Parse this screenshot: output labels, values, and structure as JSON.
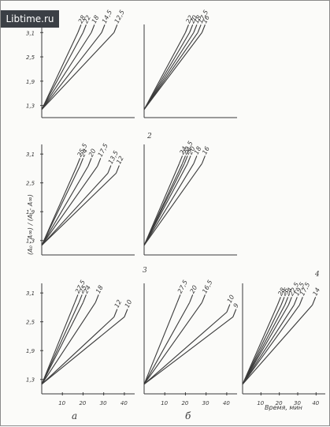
{
  "watermark": "Libtime.ru",
  "y_axis_label": "(A₀ - A∞) / (Aₜ - A∞)",
  "x_axis_label": "Время, мин",
  "column_labels": [
    "а",
    "б"
  ],
  "y_ticks": [
    "1,3",
    "1,9",
    "2,5",
    "3,1"
  ],
  "x_ticks": [
    "10",
    "20",
    "30",
    "40"
  ],
  "chart_data": [
    {
      "type": "line",
      "panel": "1-a",
      "panel_label": "",
      "xlim": [
        0,
        45
      ],
      "ylim": [
        1,
        3.3
      ],
      "series": [
        {
          "name": "28",
          "x": [
            0,
            17.5
          ],
          "y": [
            1.2,
            3.1
          ]
        },
        {
          "name": "22",
          "x": [
            0,
            20
          ],
          "y": [
            1.2,
            3.1
          ]
        },
        {
          "name": "18",
          "x": [
            0,
            24
          ],
          "y": [
            1.2,
            3.1
          ]
        },
        {
          "name": "14,5",
          "x": [
            0,
            29
          ],
          "y": [
            1.2,
            3.1
          ]
        },
        {
          "name": "12,5",
          "x": [
            0,
            35
          ],
          "y": [
            1.2,
            3.1
          ]
        }
      ]
    },
    {
      "type": "line",
      "panel": "1-b",
      "panel_label": "",
      "xlim": [
        0,
        45
      ],
      "ylim": [
        1,
        3.3
      ],
      "series": [
        {
          "name": "22",
          "x": [
            0,
            20
          ],
          "y": [
            1.2,
            3.1
          ]
        },
        {
          "name": "20",
          "x": [
            0,
            22
          ],
          "y": [
            1.2,
            3.1
          ]
        },
        {
          "name": "18",
          "x": [
            0,
            24
          ],
          "y": [
            1.2,
            3.1
          ]
        },
        {
          "name": "17,5",
          "x": [
            0,
            26
          ],
          "y": [
            1.2,
            3.1
          ]
        },
        {
          "name": "16",
          "x": [
            0,
            28
          ],
          "y": [
            1.2,
            3.1
          ]
        }
      ]
    },
    {
      "type": "line",
      "panel": "2-a",
      "panel_label": "",
      "xlim": [
        0,
        45
      ],
      "ylim": [
        1,
        3.3
      ],
      "series": [
        {
          "name": "25,5",
          "x": [
            0,
            17
          ],
          "y": [
            1.2,
            2.85
          ]
        },
        {
          "name": "24",
          "x": [
            0,
            18.5
          ],
          "y": [
            1.2,
            2.85
          ]
        },
        {
          "name": "20",
          "x": [
            0,
            22.5
          ],
          "y": [
            1.2,
            2.85
          ]
        },
        {
          "name": "17,5",
          "x": [
            0,
            27
          ],
          "y": [
            1.2,
            2.85
          ]
        },
        {
          "name": "13,5",
          "x": [
            0,
            32
          ],
          "y": [
            1.2,
            2.7
          ]
        },
        {
          "name": "12",
          "x": [
            0,
            36
          ],
          "y": [
            1.2,
            2.7
          ]
        }
      ]
    },
    {
      "type": "line",
      "panel": "2-b",
      "panel_label": "2",
      "xlim": [
        0,
        45
      ],
      "ylim": [
        1,
        3.3
      ],
      "series": [
        {
          "name": "24",
          "x": [
            0,
            17
          ],
          "y": [
            1.2,
            2.9
          ]
        },
        {
          "name": "22,5",
          "x": [
            0,
            18.5
          ],
          "y": [
            1.2,
            2.9
          ]
        },
        {
          "name": "21",
          "x": [
            0,
            19.5
          ],
          "y": [
            1.2,
            2.9
          ]
        },
        {
          "name": "20",
          "x": [
            0,
            21
          ],
          "y": [
            1.2,
            2.9
          ]
        },
        {
          "name": "18",
          "x": [
            0,
            24
          ],
          "y": [
            1.2,
            2.9
          ]
        },
        {
          "name": "16",
          "x": [
            0,
            28
          ],
          "y": [
            1.2,
            2.9
          ]
        }
      ]
    },
    {
      "type": "line",
      "panel": "3-a",
      "panel_label": "3",
      "xlim": [
        0,
        45
      ],
      "ylim": [
        1,
        3.3
      ],
      "series": [
        {
          "name": "27,5",
          "x": [
            0,
            16
          ],
          "y": [
            1.2,
            2.9
          ]
        },
        {
          "name": "25",
          "x": [
            0,
            18
          ],
          "y": [
            1.2,
            2.9
          ]
        },
        {
          "name": "24",
          "x": [
            0,
            20
          ],
          "y": [
            1.2,
            2.9
          ]
        },
        {
          "name": "18",
          "x": [
            0,
            26
          ],
          "y": [
            1.2,
            2.9
          ]
        },
        {
          "name": "12",
          "x": [
            0,
            35
          ],
          "y": [
            1.2,
            2.6
          ]
        },
        {
          "name": "10",
          "x": [
            0,
            40
          ],
          "y": [
            1.2,
            2.6
          ]
        }
      ]
    },
    {
      "type": "line",
      "panel": "3-b",
      "panel_label": "",
      "xlim": [
        0,
        45
      ],
      "ylim": [
        1,
        3.3
      ],
      "series": [
        {
          "name": "27,5",
          "x": [
            0,
            16
          ],
          "y": [
            1.2,
            2.9
          ]
        },
        {
          "name": "20",
          "x": [
            0,
            22
          ],
          "y": [
            1.2,
            2.9
          ]
        },
        {
          "name": "16,5",
          "x": [
            0,
            28
          ],
          "y": [
            1.2,
            2.9
          ]
        },
        {
          "name": "10",
          "x": [
            0,
            40
          ],
          "y": [
            1.2,
            2.7
          ]
        },
        {
          "name": "9",
          "x": [
            0,
            43
          ],
          "y": [
            1.2,
            2.6
          ]
        }
      ]
    },
    {
      "type": "line",
      "panel": "4",
      "panel_label": "4",
      "xlim": [
        0,
        45
      ],
      "ylim": [
        1,
        3.3
      ],
      "series": [
        {
          "name": "28",
          "x": [
            0,
            19
          ],
          "y": [
            1.2,
            2.85
          ]
        },
        {
          "name": "26",
          "x": [
            0,
            21
          ],
          "y": [
            1.2,
            2.85
          ]
        },
        {
          "name": "24",
          "x": [
            0,
            23
          ],
          "y": [
            1.2,
            2.85
          ]
        },
        {
          "name": "22,5",
          "x": [
            0,
            25
          ],
          "y": [
            1.2,
            2.85
          ]
        },
        {
          "name": "19,5",
          "x": [
            0,
            28
          ],
          "y": [
            1.2,
            2.85
          ]
        },
        {
          "name": "17,5",
          "x": [
            0,
            31
          ],
          "y": [
            1.2,
            2.85
          ]
        },
        {
          "name": "14",
          "x": [
            0,
            38
          ],
          "y": [
            1.2,
            2.85
          ]
        }
      ]
    }
  ]
}
